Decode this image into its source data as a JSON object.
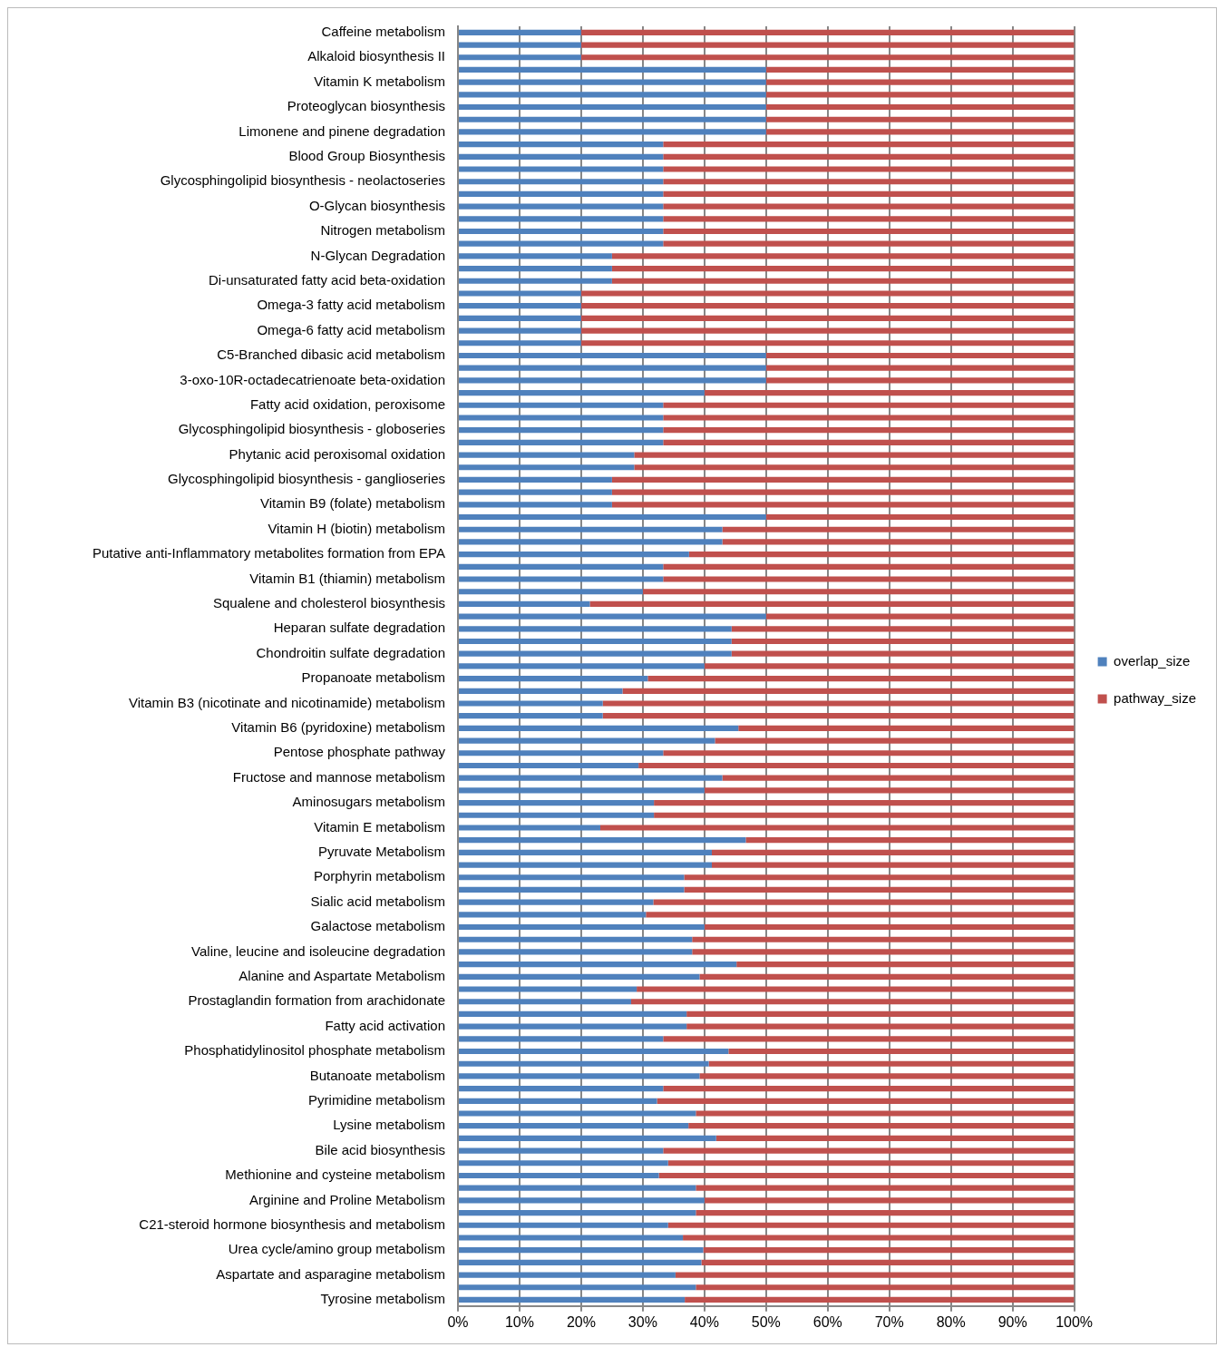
{
  "chart_data": {
    "type": "bar",
    "orientation": "horizontal",
    "stacked": true,
    "categories": [
      "Caffeine metabolism",
      null,
      "Alkaloid biosynthesis II",
      null,
      "Vitamin K metabolism",
      null,
      "Proteoglycan biosynthesis",
      null,
      "Limonene and pinene degradation",
      null,
      "Blood Group Biosynthesis",
      null,
      "Glycosphingolipid biosynthesis - neolactoseries",
      null,
      "O-Glycan biosynthesis",
      null,
      "Nitrogen metabolism",
      null,
      "N-Glycan Degradation",
      null,
      "Di-unsaturated fatty acid beta-oxidation",
      null,
      "Omega-3 fatty acid metabolism",
      null,
      "Omega-6 fatty acid metabolism",
      null,
      "C5-Branched dibasic acid metabolism",
      null,
      "3-oxo-10R-octadecatrienoate beta-oxidation",
      null,
      "Fatty acid oxidation, peroxisome",
      null,
      "Glycosphingolipid biosynthesis - globoseries",
      null,
      "Phytanic acid peroxisomal oxidation",
      null,
      "Glycosphingolipid biosynthesis - ganglioseries",
      null,
      "Vitamin B9 (folate) metabolism",
      null,
      "Vitamin H (biotin) metabolism",
      null,
      "Putative anti-Inflammatory metabolites formation from EPA",
      null,
      "Vitamin B1 (thiamin) metabolism",
      null,
      "Squalene and cholesterol biosynthesis",
      null,
      "Heparan sulfate degradation",
      null,
      "Chondroitin sulfate degradation",
      null,
      "Propanoate metabolism",
      null,
      "Vitamin B3 (nicotinate and nicotinamide) metabolism",
      null,
      "Vitamin B6 (pyridoxine) metabolism",
      null,
      "Pentose phosphate pathway",
      null,
      "Fructose and mannose metabolism",
      null,
      "Aminosugars metabolism",
      null,
      "Vitamin E metabolism",
      null,
      "Pyruvate Metabolism",
      null,
      "Porphyrin metabolism",
      null,
      "Sialic acid metabolism",
      null,
      "Galactose metabolism",
      null,
      "Valine, leucine and isoleucine degradation",
      null,
      "Alanine and Aspartate Metabolism",
      null,
      "Prostaglandin formation from arachidonate",
      null,
      "Fatty acid activation",
      null,
      "Phosphatidylinositol phosphate metabolism",
      null,
      "Butanoate metabolism",
      null,
      "Pyrimidine metabolism",
      null,
      "Lysine metabolism",
      null,
      "Bile acid biosynthesis",
      null,
      "Methionine and cysteine metabolism",
      null,
      "Arginine and Proline Metabolism",
      null,
      "C21-steroid hormone biosynthesis and metabolism",
      null,
      "Urea cycle/amino group metabolism",
      null,
      "Aspartate and asparagine metabolism",
      null,
      "Tyrosine metabolism"
    ],
    "series": [
      {
        "name": "overlap_size",
        "color": "#4f81bd",
        "values": [
          20,
          20,
          20,
          50,
          50,
          50,
          50,
          50,
          50,
          33.3,
          33.3,
          33.3,
          33.3,
          33.3,
          33.3,
          33.3,
          33.3,
          33.3,
          25,
          25,
          25,
          20,
          20,
          20,
          20,
          20,
          50,
          50,
          50,
          40,
          33.3,
          33.3,
          33.3,
          33.3,
          28.6,
          28.6,
          25,
          25,
          25,
          50,
          42.9,
          42.9,
          37.5,
          33.3,
          33.3,
          30,
          21.4,
          50,
          44.4,
          44.4,
          44.4,
          40,
          30.8,
          26.7,
          23.5,
          23.5,
          45.5,
          41.7,
          33.3,
          29.3,
          42.9,
          40,
          31.8,
          31.8,
          23.1,
          46.7,
          41.2,
          41.2,
          36.7,
          36.7,
          31.7,
          30.5,
          40,
          38,
          38,
          45.2,
          39.2,
          29,
          28.1,
          37.1,
          37.1,
          33.3,
          43.9,
          40.7,
          39.2,
          33.3,
          32.3,
          38.6,
          37.4,
          41.9,
          33.3,
          34.1,
          32.6,
          38.6,
          40,
          38.6,
          34.1,
          36.5,
          39.8,
          39.5,
          35.3,
          38.6,
          36.8
        ]
      },
      {
        "name": "pathway_size",
        "color": "#c0504d",
        "values": [
          80,
          80,
          80,
          50,
          50,
          50,
          50,
          50,
          50,
          66.7,
          66.7,
          66.7,
          66.7,
          66.7,
          66.7,
          66.7,
          66.7,
          66.7,
          75,
          75,
          75,
          80,
          80,
          80,
          80,
          80,
          50,
          50,
          50,
          60,
          66.7,
          66.7,
          66.7,
          66.7,
          71.4,
          71.4,
          75,
          75,
          75,
          50,
          57.1,
          57.1,
          62.5,
          66.7,
          66.7,
          70,
          78.6,
          50,
          55.6,
          55.6,
          55.6,
          60,
          69.2,
          73.3,
          76.5,
          76.5,
          54.5,
          58.3,
          66.7,
          70.7,
          57.1,
          60,
          68.2,
          68.2,
          76.9,
          53.3,
          58.8,
          58.8,
          63.3,
          63.3,
          68.3,
          69.5,
          60,
          62,
          62,
          54.8,
          60.8,
          71,
          71.9,
          62.9,
          62.9,
          66.7,
          56.1,
          59.3,
          60.8,
          66.7,
          67.7,
          61.4,
          62.6,
          58.1,
          66.7,
          65.9,
          67.4,
          61.4,
          60,
          61.4,
          65.9,
          63.5,
          60.2,
          60.5,
          64.7,
          61.4,
          63.2
        ]
      }
    ],
    "xlim": [
      0,
      100
    ],
    "xticks": [
      {
        "value": 0,
        "label": "0%"
      },
      {
        "value": 10,
        "label": "10%"
      },
      {
        "value": 20,
        "label": "20%"
      },
      {
        "value": 30,
        "label": "30%"
      },
      {
        "value": 40,
        "label": "40%"
      },
      {
        "value": 50,
        "label": "50%"
      },
      {
        "value": 60,
        "label": "60%"
      },
      {
        "value": 70,
        "label": "70%"
      },
      {
        "value": 80,
        "label": "80%"
      },
      {
        "value": 90,
        "label": "90%"
      },
      {
        "value": 100,
        "label": "100%"
      }
    ],
    "grid": "x",
    "legend": "right"
  }
}
